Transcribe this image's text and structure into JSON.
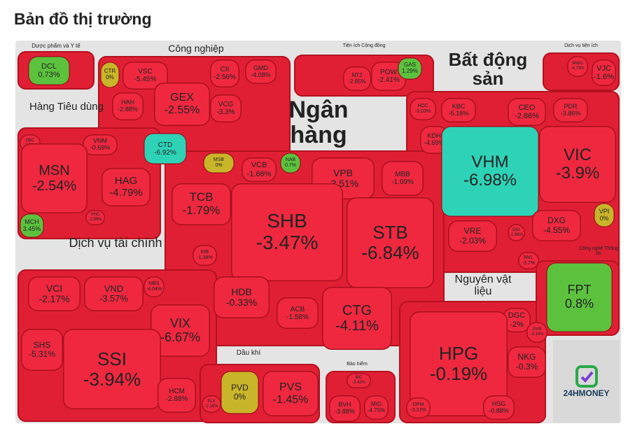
{
  "header": {
    "title": "Bản đồ thị trường"
  },
  "sectors": [
    {
      "label": "Dược phẩm và Y tế",
      "stocks": [
        {
          "ticker": "DCL",
          "change": "0.73%",
          "color": "#5cc23e"
        }
      ]
    },
    {
      "label": "Công nghiệp",
      "stocks": [
        {
          "ticker": "CTR",
          "change": "0%",
          "color": "#c9b52a"
        },
        {
          "ticker": "VSC",
          "change": "-5.45%",
          "color": "#ef2840"
        },
        {
          "ticker": "HAH",
          "change": "-2.88%",
          "color": "#ef2840"
        },
        {
          "ticker": "GEX",
          "change": "-2.55%",
          "color": "#ef2840"
        },
        {
          "ticker": "CII",
          "change": "-2.56%",
          "color": "#ef2840"
        },
        {
          "ticker": "GMD",
          "change": "-4.08%",
          "color": "#ef2840"
        },
        {
          "ticker": "VCG",
          "change": "-3.3%",
          "color": "#ef2840"
        },
        {
          "ticker": "CTD",
          "change": "-6.92%",
          "color": "#2ed3b7"
        }
      ]
    },
    {
      "label": "Tiện ích Cộng đồng",
      "stocks": [
        {
          "ticker": "NT2",
          "change": "-2.95%",
          "color": "#ef2840"
        },
        {
          "ticker": "POW",
          "change": "-2.41%",
          "color": "#ef2840"
        },
        {
          "ticker": "GAS",
          "change": "1.29%",
          "color": "#5cc23e"
        }
      ]
    },
    {
      "label": "Bất động sản",
      "stocks": [
        {
          "ticker": "HDC",
          "change": "-3.03%",
          "color": "#ef2840"
        },
        {
          "ticker": "KBC",
          "change": "-5.18%",
          "color": "#ef2840"
        },
        {
          "ticker": "CEO",
          "change": "-2.86%",
          "color": "#ef2840"
        },
        {
          "ticker": "PDR",
          "change": "-3.86%",
          "color": "#ef2840"
        },
        {
          "ticker": "KDH",
          "change": "-4.69%",
          "color": "#ef2840"
        },
        {
          "ticker": "VHM",
          "change": "-6.98%",
          "color": "#2ed3b7"
        },
        {
          "ticker": "VIC",
          "change": "-3.9%",
          "color": "#ef2840"
        },
        {
          "ticker": "VRE",
          "change": "-2.03%",
          "color": "#ef2840"
        },
        {
          "ticker": "DIG",
          "change": "-2.96%",
          "color": "#ef2840"
        },
        {
          "ticker": "DXG",
          "change": "-4.55%",
          "color": "#ef2840"
        },
        {
          "ticker": "NVL",
          "change": "-3.7%",
          "color": "#ef2840"
        },
        {
          "ticker": "VPI",
          "change": "0%",
          "color": "#c9b52a"
        }
      ]
    },
    {
      "label": "Dịch vụ tiện ích",
      "stocks": [
        {
          "ticker": "MWG",
          "change": "-4.73%",
          "color": "#ef2840"
        },
        {
          "ticker": "VJC",
          "change": "-1.6%",
          "color": "#ef2840"
        }
      ]
    },
    {
      "label": "Hàng Tiêu dùng",
      "stocks": [
        {
          "ticker": "DBC",
          "change": "-2.52%",
          "color": "#ef2840"
        },
        {
          "ticker": "VNM",
          "change": "-0.69%",
          "color": "#ef2840"
        },
        {
          "ticker": "MSN",
          "change": "-2.54%",
          "color": "#ef2840"
        },
        {
          "ticker": "HAG",
          "change": "-4.79%",
          "color": "#ef2840"
        },
        {
          "ticker": "VHC",
          "change": "-2.96%",
          "color": "#ef2840"
        },
        {
          "ticker": "MCH",
          "change": "3.45%",
          "color": "#5cc23e"
        }
      ]
    },
    {
      "label": "Ngân hàng",
      "stocks": [
        {
          "ticker": "MSB",
          "change": "0%",
          "color": "#c9b52a"
        },
        {
          "ticker": "VCB",
          "change": "-1.66%",
          "color": "#ef2840"
        },
        {
          "ticker": "NAB",
          "change": "0.7%",
          "color": "#5cc23e"
        },
        {
          "ticker": "VPB",
          "change": "-3.51%",
          "color": "#ef2840"
        },
        {
          "ticker": "MBB",
          "change": "-1.69%",
          "color": "#ef2840"
        },
        {
          "ticker": "TCB",
          "change": "-1.79%",
          "color": "#ef2840"
        },
        {
          "ticker": "SHB",
          "change": "-3.47%",
          "color": "#ef2840"
        },
        {
          "ticker": "STB",
          "change": "-6.84%",
          "color": "#ef2840"
        },
        {
          "ticker": "EIB",
          "change": "-1.38%",
          "color": "#ef2840"
        },
        {
          "ticker": "HDB",
          "change": "-0.33%",
          "color": "#ef2840"
        },
        {
          "ticker": "ACB",
          "change": "-1.58%",
          "color": "#ef2840"
        },
        {
          "ticker": "CTG",
          "change": "-4.11%",
          "color": "#ef2840"
        }
      ]
    },
    {
      "label": "Dịch vụ tài chính",
      "stocks": [
        {
          "ticker": "VCI",
          "change": "-2.17%",
          "color": "#ef2840"
        },
        {
          "ticker": "VND",
          "change": "-3.57%",
          "color": "#ef2840"
        },
        {
          "ticker": "MBS",
          "change": "-4.04%",
          "color": "#ef2840"
        },
        {
          "ticker": "SHS",
          "change": "-5.31%",
          "color": "#ef2840"
        },
        {
          "ticker": "VIX",
          "change": "-6.67%",
          "color": "#ef2840"
        },
        {
          "ticker": "SSI",
          "change": "-3.94%",
          "color": "#ef2840"
        },
        {
          "ticker": "HCM",
          "change": "-2.88%",
          "color": "#ef2840"
        }
      ]
    },
    {
      "label": "Dầu khí",
      "stocks": [
        {
          "ticker": "PLX",
          "change": "-2.16%",
          "color": "#ef2840"
        },
        {
          "ticker": "PVD",
          "change": "0%",
          "color": "#c9b52a"
        },
        {
          "ticker": "PVS",
          "change": "-1.45%",
          "color": "#ef2840"
        }
      ]
    },
    {
      "label": "Bảo hiểm",
      "stocks": [
        {
          "ticker": "BIC",
          "change": "-3.42%",
          "color": "#ef2840"
        },
        {
          "ticker": "BVH",
          "change": "-3.88%",
          "color": "#ef2840"
        },
        {
          "ticker": "MIG",
          "change": "-4.75%",
          "color": "#ef2840"
        }
      ]
    },
    {
      "label": "Nguyên vật liệu",
      "stocks": [
        {
          "ticker": "DGC",
          "change": "-2%",
          "color": "#ef2840"
        },
        {
          "ticker": "GVR",
          "change": "-3.14%",
          "color": "#ef2840"
        },
        {
          "ticker": "HPG",
          "change": "-0.19%",
          "color": "#ef2840"
        },
        {
          "ticker": "NKG",
          "change": "-0.3%",
          "color": "#ef2840"
        },
        {
          "ticker": "HSG",
          "change": "-0.88%",
          "color": "#ef2840"
        },
        {
          "ticker": "DPM",
          "change": "-3.27%",
          "color": "#ef2840"
        }
      ]
    },
    {
      "label": "Công nghệ Thông tin",
      "stocks": [
        {
          "ticker": "FPT",
          "change": "0.8%",
          "color": "#5cc23e"
        }
      ]
    }
  ],
  "logo": {
    "text": "24HMONEY"
  }
}
